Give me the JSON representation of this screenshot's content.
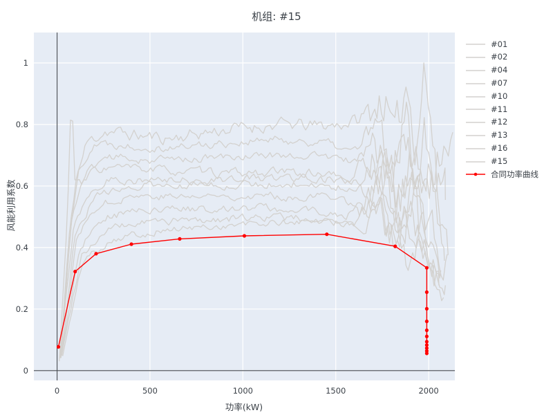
{
  "title": "机组: #15",
  "chart_data": {
    "type": "line",
    "title": "机组: #15",
    "xlabel": "功率(kW)",
    "ylabel": "风能利用系数",
    "xlim": [
      -125,
      2141
    ],
    "ylim": [
      -0.032,
      1.099
    ],
    "xticks": [
      0,
      500,
      1000,
      1500,
      2000
    ],
    "yticks": [
      0,
      0.2,
      0.4,
      0.6,
      0.8,
      1
    ],
    "grid": true,
    "legend_position": "right-outside",
    "colors": {
      "plot_background": "#e6ecf5",
      "grid": "#ffffff",
      "zeroline": "#43484f",
      "gray_series": "#d3d1ce",
      "contract": "#ff0000",
      "text": "#3b4148"
    },
    "series": [
      {
        "name": "#01",
        "seed": 11,
        "amp": 0.018,
        "chaos_start": 1600,
        "chaos_amp": 0.07,
        "anchors": [
          [
            18,
            0.05
          ],
          [
            60,
            0.4
          ],
          [
            100,
            0.62
          ],
          [
            160,
            0.74
          ],
          [
            260,
            0.78
          ],
          [
            420,
            0.765
          ],
          [
            600,
            0.755
          ],
          [
            800,
            0.775
          ],
          [
            1000,
            0.79
          ],
          [
            1200,
            0.8
          ],
          [
            1400,
            0.795
          ],
          [
            1520,
            0.8
          ],
          [
            1650,
            0.82
          ],
          [
            1760,
            0.9
          ],
          [
            1820,
            0.72
          ],
          [
            1880,
            0.95
          ],
          [
            1930,
            0.75
          ],
          [
            1975,
            1.0
          ],
          [
            2015,
            0.8
          ],
          [
            2050,
            0.55
          ],
          [
            2085,
            0.38
          ]
        ]
      },
      {
        "name": "#02",
        "seed": 22,
        "amp": 0.012,
        "chaos_start": 1580,
        "chaos_amp": 0.08,
        "anchors": [
          [
            20,
            0.04
          ],
          [
            70,
            0.45
          ],
          [
            120,
            0.66
          ],
          [
            200,
            0.74
          ],
          [
            350,
            0.735
          ],
          [
            600,
            0.725
          ],
          [
            900,
            0.74
          ],
          [
            1200,
            0.75
          ],
          [
            1450,
            0.74
          ],
          [
            1580,
            0.71
          ],
          [
            1700,
            0.78
          ],
          [
            1800,
            0.62
          ],
          [
            1870,
            0.84
          ],
          [
            1930,
            0.66
          ],
          [
            1980,
            0.82
          ],
          [
            2030,
            0.62
          ],
          [
            2070,
            0.5
          ],
          [
            2105,
            0.42
          ]
        ]
      },
      {
        "name": "#04",
        "seed": 33,
        "amp": 0.012,
        "chaos_start": 1620,
        "chaos_amp": 0.07,
        "anchors": [
          [
            12,
            0.03
          ],
          [
            55,
            0.5
          ],
          [
            78,
            0.92
          ],
          [
            95,
            0.62
          ],
          [
            130,
            0.6
          ],
          [
            200,
            0.655
          ],
          [
            320,
            0.66
          ],
          [
            600,
            0.65
          ],
          [
            900,
            0.64
          ],
          [
            1200,
            0.645
          ],
          [
            1450,
            0.64
          ],
          [
            1620,
            0.61
          ],
          [
            1750,
            0.7
          ],
          [
            1850,
            0.55
          ],
          [
            1930,
            0.74
          ],
          [
            2000,
            0.55
          ],
          [
            2050,
            0.66
          ],
          [
            2090,
            0.58
          ]
        ]
      },
      {
        "name": "#07",
        "seed": 44,
        "amp": 0.011,
        "chaos_start": 1600,
        "chaos_amp": 0.065,
        "anchors": [
          [
            18,
            0.05
          ],
          [
            80,
            0.5
          ],
          [
            150,
            0.64
          ],
          [
            260,
            0.695
          ],
          [
            500,
            0.685
          ],
          [
            800,
            0.69
          ],
          [
            1100,
            0.7
          ],
          [
            1400,
            0.7
          ],
          [
            1580,
            0.68
          ],
          [
            1700,
            0.74
          ],
          [
            1800,
            0.62
          ],
          [
            1890,
            0.73
          ],
          [
            1960,
            0.58
          ],
          [
            2020,
            0.66
          ],
          [
            2080,
            0.75
          ],
          [
            2130,
            0.73
          ]
        ]
      },
      {
        "name": "#10",
        "seed": 55,
        "amp": 0.012,
        "chaos_start": 1580,
        "chaos_amp": 0.07,
        "anchors": [
          [
            15,
            0.04
          ],
          [
            90,
            0.48
          ],
          [
            170,
            0.58
          ],
          [
            280,
            0.625
          ],
          [
            500,
            0.615
          ],
          [
            800,
            0.62
          ],
          [
            1100,
            0.625
          ],
          [
            1400,
            0.63
          ],
          [
            1550,
            0.61
          ],
          [
            1700,
            0.67
          ],
          [
            1800,
            0.52
          ],
          [
            1880,
            0.63
          ],
          [
            1950,
            0.44
          ],
          [
            2010,
            0.54
          ],
          [
            2060,
            0.35
          ],
          [
            2100,
            0.3
          ]
        ]
      },
      {
        "name": "#11",
        "seed": 66,
        "amp": 0.011,
        "chaos_start": 1600,
        "chaos_amp": 0.065,
        "anchors": [
          [
            25,
            0.06
          ],
          [
            100,
            0.46
          ],
          [
            200,
            0.56
          ],
          [
            350,
            0.6
          ],
          [
            650,
            0.6
          ],
          [
            950,
            0.605
          ],
          [
            1250,
            0.61
          ],
          [
            1500,
            0.6
          ],
          [
            1650,
            0.57
          ],
          [
            1760,
            0.64
          ],
          [
            1850,
            0.47
          ],
          [
            1930,
            0.58
          ],
          [
            2000,
            0.42
          ],
          [
            2055,
            0.33
          ]
        ]
      },
      {
        "name": "#12",
        "seed": 77,
        "amp": 0.011,
        "chaos_start": 1590,
        "chaos_amp": 0.06,
        "anchors": [
          [
            20,
            0.05
          ],
          [
            110,
            0.44
          ],
          [
            220,
            0.54
          ],
          [
            400,
            0.57
          ],
          [
            700,
            0.565
          ],
          [
            1000,
            0.57
          ],
          [
            1300,
            0.565
          ],
          [
            1500,
            0.57
          ],
          [
            1650,
            0.52
          ],
          [
            1770,
            0.6
          ],
          [
            1860,
            0.44
          ],
          [
            1940,
            0.54
          ],
          [
            2010,
            0.37
          ],
          [
            2065,
            0.31
          ]
        ]
      },
      {
        "name": "#13",
        "seed": 88,
        "amp": 0.011,
        "chaos_start": 1600,
        "chaos_amp": 0.055,
        "anchors": [
          [
            20,
            0.04
          ],
          [
            120,
            0.4
          ],
          [
            250,
            0.5
          ],
          [
            450,
            0.52
          ],
          [
            750,
            0.525
          ],
          [
            1050,
            0.53
          ],
          [
            1350,
            0.52
          ],
          [
            1550,
            0.5
          ],
          [
            1700,
            0.56
          ],
          [
            1820,
            0.42
          ],
          [
            1910,
            0.52
          ],
          [
            1990,
            0.38
          ],
          [
            2045,
            0.33
          ],
          [
            2090,
            0.29
          ]
        ]
      },
      {
        "name": "#16",
        "seed": 99,
        "amp": 0.011,
        "chaos_start": 1610,
        "chaos_amp": 0.055,
        "anchors": [
          [
            25,
            0.05
          ],
          [
            130,
            0.38
          ],
          [
            280,
            0.46
          ],
          [
            500,
            0.485
          ],
          [
            820,
            0.49
          ],
          [
            1120,
            0.5
          ],
          [
            1420,
            0.49
          ],
          [
            1600,
            0.47
          ],
          [
            1730,
            0.53
          ],
          [
            1840,
            0.4
          ],
          [
            1930,
            0.48
          ],
          [
            2000,
            0.35
          ],
          [
            2055,
            0.3
          ]
        ]
      },
      {
        "name": "#15",
        "seed": 101,
        "amp": 0.01,
        "chaos_start": 1620,
        "chaos_amp": 0.05,
        "anchors": [
          [
            30,
            0.05
          ],
          [
            140,
            0.36
          ],
          [
            300,
            0.43
          ],
          [
            550,
            0.455
          ],
          [
            880,
            0.47
          ],
          [
            1200,
            0.48
          ],
          [
            1480,
            0.49
          ],
          [
            1650,
            0.46
          ],
          [
            1780,
            0.52
          ],
          [
            1880,
            0.38
          ],
          [
            1960,
            0.45
          ],
          [
            2030,
            0.32
          ],
          [
            2080,
            0.28
          ]
        ]
      }
    ],
    "contract_curve": {
      "name": "合同功率曲线",
      "color": "#ff0000",
      "points": [
        [
          7,
          0.077
        ],
        [
          97,
          0.322
        ],
        [
          210,
          0.38
        ],
        [
          400,
          0.411
        ],
        [
          660,
          0.428
        ],
        [
          1008,
          0.438
        ],
        [
          1452,
          0.443
        ],
        [
          1820,
          0.404
        ],
        [
          1990,
          0.334
        ],
        [
          1990,
          0.255
        ],
        [
          1990,
          0.201
        ],
        [
          1990,
          0.16
        ],
        [
          1990,
          0.131
        ],
        [
          1990,
          0.111
        ],
        [
          1990,
          0.094
        ],
        [
          1990,
          0.083
        ],
        [
          1990,
          0.073
        ],
        [
          1990,
          0.064
        ],
        [
          1990,
          0.056
        ]
      ]
    }
  }
}
